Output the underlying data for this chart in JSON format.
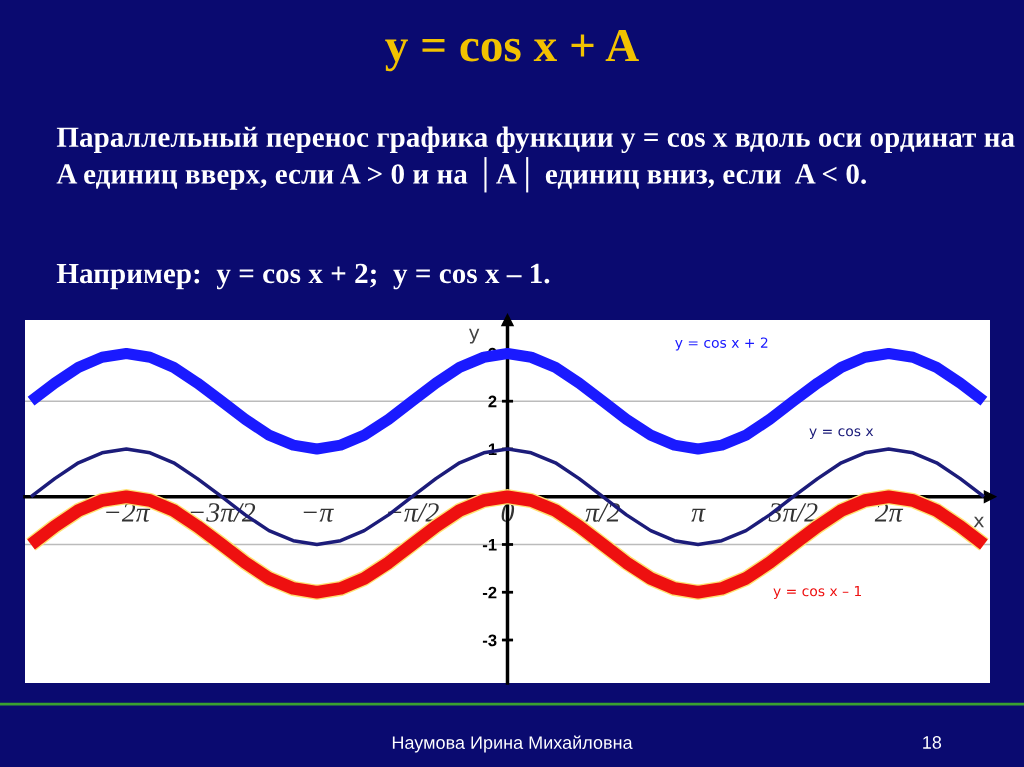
{
  "chart_data": {
    "type": "line",
    "title": "y = cos x + A",
    "subtitle": "Параллельный перенос графика функции y = cos x вдоль оси ординат на A единиц вверх, если A > 0 и на │A│ единиц вниз, если  A < 0.",
    "annotations": [
      "Например:  y = cos x + 2;  y = cos x – 1.",
      "Наумова Ирина Михайловна",
      "18"
    ],
    "xlabel": "x",
    "ylabel": "y",
    "x": [
      -7.85,
      -7.46,
      -7.07,
      -6.68,
      -6.28,
      -5.89,
      -5.5,
      -5.11,
      -4.71,
      -4.32,
      -3.93,
      -3.53,
      -3.14,
      -2.75,
      -2.36,
      -1.96,
      -1.57,
      -1.18,
      -0.79,
      -0.39,
      0,
      0.39,
      0.79,
      1.18,
      1.57,
      1.96,
      2.36,
      2.75,
      3.14,
      3.53,
      3.93,
      4.32,
      4.71,
      5.11,
      5.5,
      5.89,
      6.28,
      6.68,
      7.07,
      7.46,
      7.85
    ],
    "series": [
      {
        "name": "y = cos x + 2",
        "color": "#1a1aff",
        "values": [
          2,
          2.38,
          2.71,
          2.92,
          3,
          2.92,
          2.71,
          2.38,
          2,
          1.62,
          1.29,
          1.08,
          1,
          1.08,
          1.29,
          1.62,
          2,
          2.38,
          2.71,
          2.92,
          3,
          2.92,
          2.71,
          2.38,
          2,
          1.62,
          1.29,
          1.08,
          1,
          1.08,
          1.29,
          1.62,
          2,
          2.38,
          2.71,
          2.92,
          3,
          2.92,
          2.71,
          2.38,
          2
        ]
      },
      {
        "name": "y = cos x",
        "color": "#1c1c7a",
        "values": [
          0,
          0.38,
          0.71,
          0.92,
          1,
          0.92,
          0.71,
          0.38,
          0,
          -0.38,
          -0.71,
          -0.92,
          -1,
          -0.92,
          -0.71,
          -0.38,
          0,
          0.38,
          0.71,
          0.92,
          1,
          0.92,
          0.71,
          0.38,
          0,
          -0.38,
          -0.71,
          -0.92,
          -1,
          -0.92,
          -0.71,
          -0.38,
          0,
          0.38,
          0.71,
          0.92,
          1,
          0.92,
          0.71,
          0.38,
          0
        ]
      },
      {
        "name": "y = cos x – 1",
        "color": "#ee1010",
        "values": [
          -1,
          -0.62,
          -0.29,
          -0.08,
          0,
          -0.08,
          -0.29,
          -0.62,
          -1,
          -1.38,
          -1.71,
          -1.92,
          -2,
          -1.92,
          -1.71,
          -1.38,
          -1,
          -0.62,
          -0.29,
          -0.08,
          0,
          -0.08,
          -0.29,
          -0.62,
          -1,
          -1.38,
          -1.71,
          -1.92,
          -2,
          -1.92,
          -1.71,
          -1.38,
          -1,
          -0.62,
          -0.29,
          -0.08,
          0,
          -0.08,
          -0.29,
          -0.62,
          -1
        ]
      }
    ],
    "xlim": [
      -7.95,
      7.95
    ],
    "ylim": [
      -3.9,
      3.7
    ],
    "xticks": [
      {
        "value": -6.28,
        "label": "−2π"
      },
      {
        "value": -4.71,
        "label": "−3π/2"
      },
      {
        "value": -3.14,
        "label": "−π"
      },
      {
        "value": -1.57,
        "label": "−π/2"
      },
      0,
      {
        "value": 1.57,
        "label": "π/2"
      },
      {
        "value": 3.14,
        "label": "π"
      },
      {
        "value": 4.71,
        "label": "3π/2"
      },
      {
        "value": 6.28,
        "label": "2π"
      }
    ],
    "yticks": [
      -3,
      -2,
      -1,
      1,
      2,
      3
    ],
    "ref_lines": [
      {
        "axis": "y",
        "value": 2,
        "color": "#bbbbbb"
      },
      {
        "axis": "y",
        "value": -1,
        "color": "#bbbbbb"
      }
    ],
    "grid": false,
    "legend": false,
    "marker": "none",
    "line_style": "solid"
  }
}
